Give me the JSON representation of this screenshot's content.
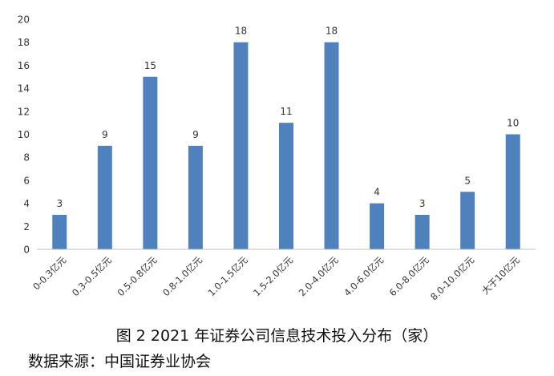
{
  "chart_data": {
    "type": "bar",
    "categories": [
      "0-0.3亿元",
      "0.3-0.5亿元",
      "0.5-0.8亿元",
      "0.8-1.0亿元",
      "1.0-1.5亿元",
      "1.5-2.0亿元",
      "2.0-4.0亿元",
      "4.0-6.0亿元",
      "6.0-8.0亿元",
      "8.0-10.0亿元",
      "大于10亿元"
    ],
    "values": [
      3,
      9,
      15,
      9,
      18,
      11,
      18,
      4,
      3,
      5,
      10
    ],
    "ylim": [
      0,
      20
    ],
    "yticks": [
      0,
      2,
      4,
      6,
      8,
      10,
      12,
      14,
      16,
      18,
      20
    ],
    "grid": false,
    "data_labels": true,
    "bar_color": "#4f81bd",
    "title": "图 2  2021 年证券公司信息技术投入分布（家）",
    "source": "数据来源：中国证券业协会"
  }
}
